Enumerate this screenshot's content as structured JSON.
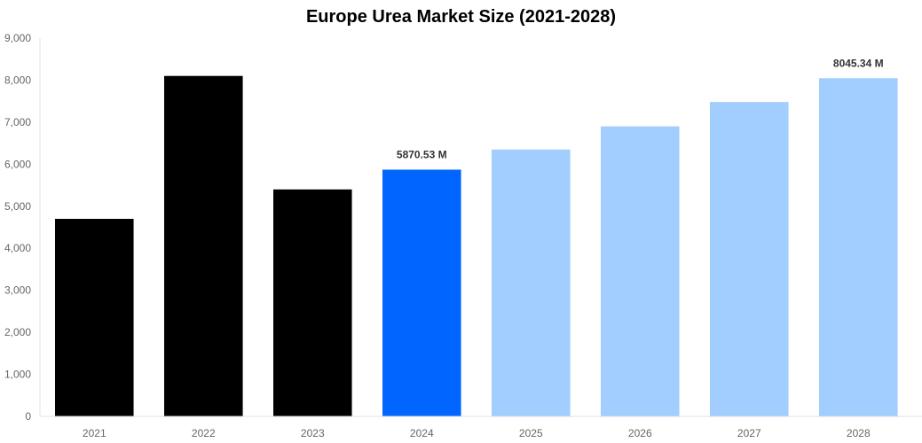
{
  "chart_data": {
    "type": "bar",
    "title": "Europe Urea Market Size (2021-2028)",
    "xlabel": "",
    "ylabel": "",
    "categories": [
      "2021",
      "2022",
      "2023",
      "2024",
      "2025",
      "2026",
      "2027",
      "2028"
    ],
    "values": [
      4700,
      8100,
      5400,
      5870.53,
      6350,
      6900,
      7480,
      8045.34
    ],
    "bar_colors": [
      "#000000",
      "#000000",
      "#000000",
      "#0066ff",
      "#a1cdff",
      "#a1cdff",
      "#a1cdff",
      "#a1cdff"
    ],
    "ylim": [
      0,
      9000
    ],
    "yticks": [
      "0",
      "1,000",
      "2,000",
      "3,000",
      "4,000",
      "5,000",
      "6,000",
      "7,000",
      "8,000",
      "9,000"
    ],
    "data_labels": [
      {
        "category": "2024",
        "text": "5870.53 M"
      },
      {
        "category": "2028",
        "text": "8045.34 M"
      }
    ],
    "grid": false,
    "legend": "none"
  }
}
